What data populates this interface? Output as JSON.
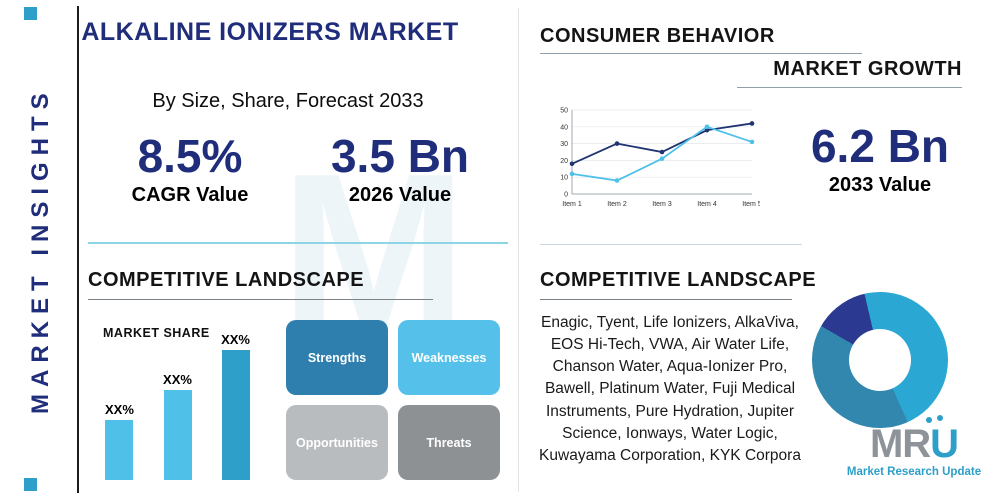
{
  "sidebar": {
    "label": "MARKET INSIGHTS"
  },
  "header": {
    "title": "ALKALINE IONIZERS MARKET",
    "subtitle": "By Size, Share, Forecast 2033"
  },
  "stats": {
    "cagr": {
      "value": "8.5%",
      "label": "CAGR Value"
    },
    "y2026": {
      "value": "3.5 Bn",
      "label": "2026 Value"
    },
    "y2033": {
      "value": "6.2 Bn",
      "label": "2033 Value"
    }
  },
  "sections": {
    "consumer_behavior": "CONSUMER BEHAVIOR",
    "market_growth": "MARKET GROWTH",
    "competitive_landscape_left": "COMPETITIVE LANDSCAPE",
    "competitive_landscape_right": "COMPETITIVE LANDSCAPE"
  },
  "swot": {
    "strengths": "Strengths",
    "weaknesses": "Weaknesses",
    "opportunities": "Opportunities",
    "threats": "Threats"
  },
  "companies": "Enagic, Tyent, Life Ionizers, AlkaViva, EOS Hi-Tech, VWA, Air Water Life, Chanson Water, Aqua-Ionizer Pro, Bawell, Platinum Water, Fuji Medical Instruments, Pure Hydration, Jupiter Science, Ionways, Water Logic, Kuwayama Corporation, KYK Corpora",
  "logo": {
    "letters_gray": "MR",
    "letter_accent": "U",
    "tagline": "Market Research Update"
  },
  "watermark": {
    "letter": "M"
  },
  "colors": {
    "navy": "#1f2d7a",
    "teal": "#2d9fc9",
    "light_blue": "#4fc0e8"
  },
  "chart_data": [
    {
      "type": "bar",
      "title": "MARKET SHARE",
      "categories": [
        "",
        "",
        ""
      ],
      "values": [
        30,
        45,
        65
      ],
      "data_labels": [
        "XX%",
        "XX%",
        "XX%"
      ],
      "colors": [
        "#4fc0e8",
        "#4fc0e8",
        "#2d9fc9"
      ],
      "xlabel": "",
      "ylabel": ""
    },
    {
      "type": "line",
      "title": "MARKET GROWTH",
      "x": [
        "Item 1",
        "Item 2",
        "Item 3",
        "Item 4",
        "Item 5"
      ],
      "series": [
        {
          "name": "series-navy",
          "color": "#1f3470",
          "values": [
            18,
            30,
            25,
            38,
            42
          ]
        },
        {
          "name": "series-cyan",
          "color": "#4fc0e8",
          "values": [
            12,
            8,
            21,
            40,
            31
          ]
        }
      ],
      "ylim": [
        0,
        50
      ],
      "yticks": [
        0,
        10,
        20,
        30,
        40,
        50
      ],
      "grid": true,
      "legend": false
    },
    {
      "type": "pie",
      "donut": true,
      "start_angle_deg": -60,
      "slices": [
        {
          "name": "slice-1",
          "value": 13,
          "color": "#2b3990"
        },
        {
          "name": "slice-2",
          "value": 47,
          "color": "#2ba7d4"
        },
        {
          "name": "slice-3",
          "value": 40,
          "color": "#3187ae"
        }
      ]
    }
  ]
}
